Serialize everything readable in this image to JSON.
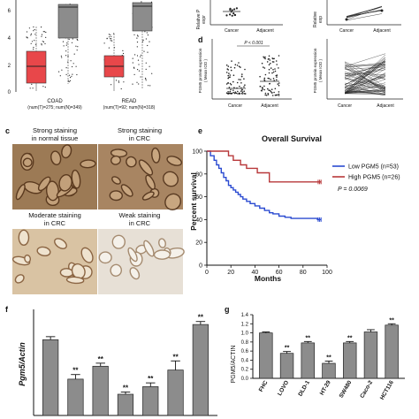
{
  "panel_labels": {
    "c": "c",
    "d": "d",
    "e": "e",
    "f": "f",
    "g": "g"
  },
  "panel_a": {
    "ytick_labels": [
      "6",
      "4",
      "2",
      "0"
    ],
    "xlabels": [
      {
        "name": "COAD",
        "sub": "(num(T)=275; num(N)=349)"
      },
      {
        "name": "READ",
        "sub": "(num(T)=92; num(N)=318)"
      }
    ],
    "colors": {
      "tumor": "#e8474a",
      "normal": "#8c8c8c"
    }
  },
  "panel_b": {
    "left_ylabel": "Relative P",
    "left_ylabel2": "expr",
    "right_ylabel": "Relative",
    "right_ylabel2": "exp",
    "xticks": [
      "Cancer",
      "Adjacent"
    ]
  },
  "panel_d": {
    "left_ylabel": "PGM5 protein expression",
    "left_ylabel2": "( Mean IOD )",
    "right_ylabel": "PGM5 protein expression",
    "right_ylabel2": "( Mean IOD )",
    "pvalue": "P < 0.001",
    "xticks": [
      "Cancer",
      "Adjacent"
    ]
  },
  "panel_c": {
    "captions": [
      [
        "Strong staining",
        "in normal tissue"
      ],
      [
        "Strong staining",
        "in CRC"
      ],
      [
        "Moderate staining",
        "in CRC"
      ],
      [
        "Weak staining",
        "in CRC"
      ]
    ]
  },
  "chart_data": [
    {
      "type": "line",
      "title": "Overall Survival",
      "xlabel": "Months",
      "ylabel": "Percent survival",
      "xlim": [
        0,
        100
      ],
      "ylim": [
        0,
        100
      ],
      "xticks": [
        "0",
        "20",
        "40",
        "60",
        "80",
        "100"
      ],
      "yticks": [
        "0",
        "20",
        "40",
        "60",
        "80",
        "100"
      ],
      "legend_position": "top-right",
      "pvalue": "P = 0.0069",
      "series": [
        {
          "name": "Low PGM5 (n=53)",
          "color": "#2b4bd1",
          "x": [
            0,
            3,
            6,
            8,
            10,
            12,
            14,
            16,
            18,
            20,
            22,
            24,
            26,
            28,
            30,
            33,
            36,
            40,
            44,
            48,
            52,
            55,
            60,
            65,
            70,
            92,
            95
          ],
          "y": [
            100,
            96,
            92,
            88,
            85,
            81,
            77,
            74,
            70,
            68,
            66,
            64,
            62,
            60,
            58,
            56,
            54,
            52,
            50,
            48,
            46,
            45,
            43,
            42,
            41,
            40,
            40
          ]
        },
        {
          "name": "High PGM5 (n=26)",
          "color": "#b8383a",
          "x": [
            0,
            18,
            22,
            28,
            33,
            42,
            52,
            95
          ],
          "y": [
            100,
            96,
            92,
            88,
            85,
            81,
            73,
            73
          ]
        }
      ]
    },
    {
      "type": "bar",
      "ylabel": "Pgm5/Actin",
      "ylim": [
        0,
        1.4
      ],
      "values": [
        1.0,
        0.48,
        0.65,
        0.28,
        0.38,
        0.6,
        1.2
      ],
      "errors": [
        0.04,
        0.06,
        0.04,
        0.03,
        0.05,
        0.12,
        0.04
      ],
      "significance": [
        "",
        "**",
        "**",
        "**",
        "**",
        "**",
        "**"
      ],
      "color": "#8c8c8c"
    },
    {
      "type": "bar",
      "ylabel": "PGM5/ACTIN",
      "ylim": [
        0,
        1.4
      ],
      "yticks": [
        "0.0",
        "0.2",
        "0.4",
        "0.6",
        "0.8",
        "1.0",
        "1.2",
        "1.4"
      ],
      "categories": [
        "FHC",
        "LOVO",
        "DLD-1",
        "HT-29",
        "SW480",
        "Caco-2",
        "HCT116"
      ],
      "values": [
        1.0,
        0.55,
        0.78,
        0.33,
        0.78,
        1.02,
        1.17
      ],
      "errors": [
        0.02,
        0.04,
        0.03,
        0.05,
        0.03,
        0.05,
        0.03
      ],
      "significance": [
        "",
        "**",
        "**",
        "**",
        "**",
        "",
        "**"
      ],
      "color": "#8c8c8c"
    }
  ]
}
